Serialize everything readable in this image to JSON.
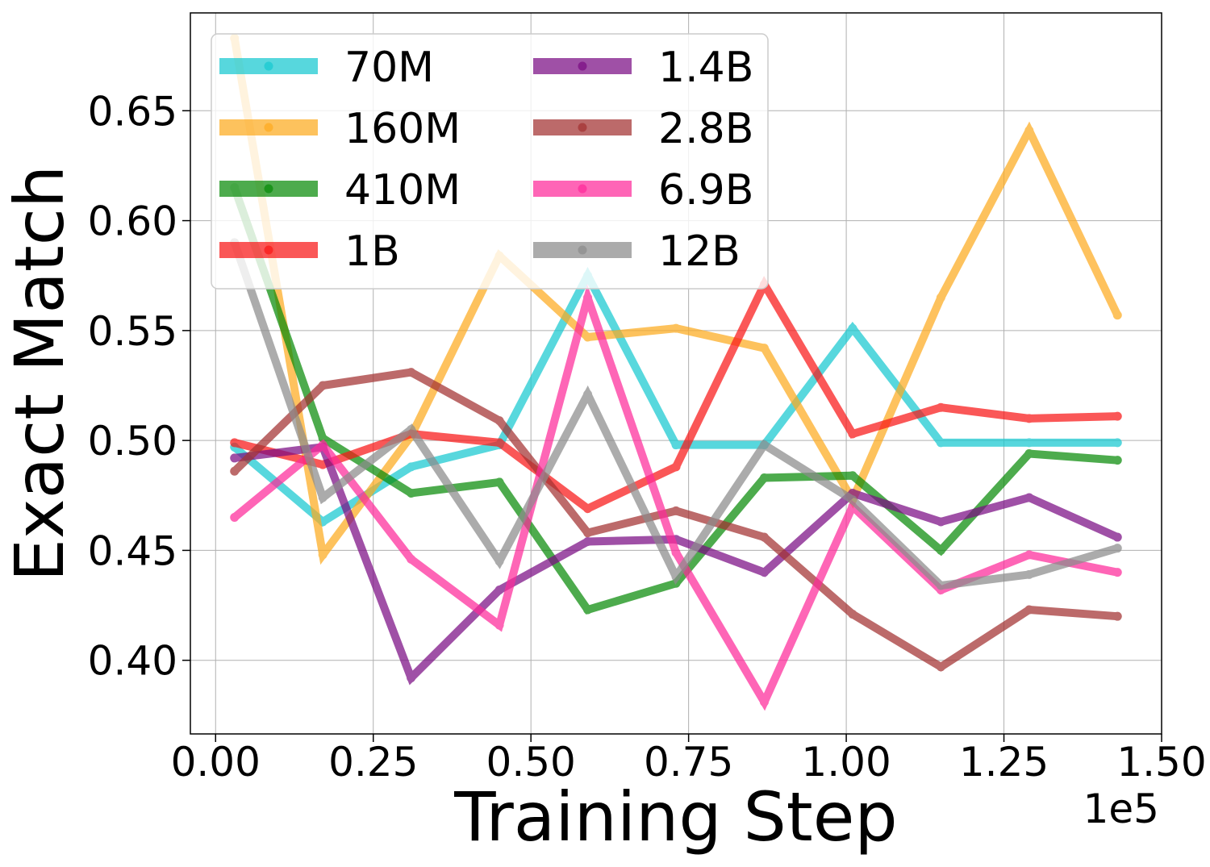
{
  "chart_data": {
    "type": "line",
    "title": "",
    "xlabel": "Training Step",
    "ylabel": "Exact Match",
    "x_offset_label": "1e5",
    "xlim": [
      -0.04,
      1.5
    ],
    "ylim": [
      0.3665,
      0.6945
    ],
    "xticks": [
      0.0,
      0.25,
      0.5,
      0.75,
      1.0,
      1.25,
      1.5
    ],
    "xtick_labels": [
      "0.00",
      "0.25",
      "0.50",
      "0.75",
      "1.00",
      "1.25",
      "1.50"
    ],
    "yticks": [
      0.4,
      0.45,
      0.5,
      0.55,
      0.6,
      0.65
    ],
    "ytick_labels": [
      "0.40",
      "0.45",
      "0.50",
      "0.55",
      "0.60",
      "0.65"
    ],
    "grid": true,
    "legend": {
      "position": "top-left",
      "columns": 2
    },
    "x": [
      0.03,
      0.17,
      0.31,
      0.45,
      0.59,
      0.73,
      0.87,
      1.01,
      1.15,
      1.29,
      1.43
    ],
    "series": [
      {
        "name": "70M",
        "color": "#17c9d0",
        "values": [
          0.497,
          0.463,
          0.488,
          0.498,
          0.575,
          0.498,
          0.498,
          0.551,
          0.499,
          0.499,
          0.499
        ]
      },
      {
        "name": "160M",
        "color": "#fdab20",
        "values": [
          0.683,
          0.448,
          0.502,
          0.584,
          0.547,
          0.551,
          0.542,
          0.473,
          0.565,
          0.641,
          0.557
        ]
      },
      {
        "name": "410M",
        "color": "#098b09",
        "values": [
          0.615,
          0.501,
          0.476,
          0.481,
          0.423,
          0.435,
          0.483,
          0.484,
          0.45,
          0.494,
          0.491
        ]
      },
      {
        "name": "1B",
        "color": "#f91717",
        "values": [
          0.499,
          0.489,
          0.503,
          0.499,
          0.469,
          0.488,
          0.571,
          0.503,
          0.515,
          0.51,
          0.511
        ]
      },
      {
        "name": "1.4B",
        "color": "#7b0d84",
        "values": [
          0.492,
          0.497,
          0.392,
          0.432,
          0.454,
          0.455,
          0.44,
          0.476,
          0.463,
          0.474,
          0.456
        ]
      },
      {
        "name": "2.8B",
        "color": "#a33232",
        "values": [
          0.486,
          0.525,
          0.531,
          0.509,
          0.458,
          0.468,
          0.456,
          0.421,
          0.397,
          0.423,
          0.42
        ]
      },
      {
        "name": "6.9B",
        "color": "#fe2b9a",
        "values": [
          0.465,
          0.498,
          0.446,
          0.416,
          0.565,
          0.449,
          0.381,
          0.47,
          0.432,
          0.448,
          0.44
        ]
      },
      {
        "name": "12B",
        "color": "#8c8c8c",
        "values": [
          0.59,
          0.474,
          0.505,
          0.445,
          0.521,
          0.438,
          0.498,
          0.473,
          0.434,
          0.439,
          0.451
        ]
      }
    ]
  }
}
